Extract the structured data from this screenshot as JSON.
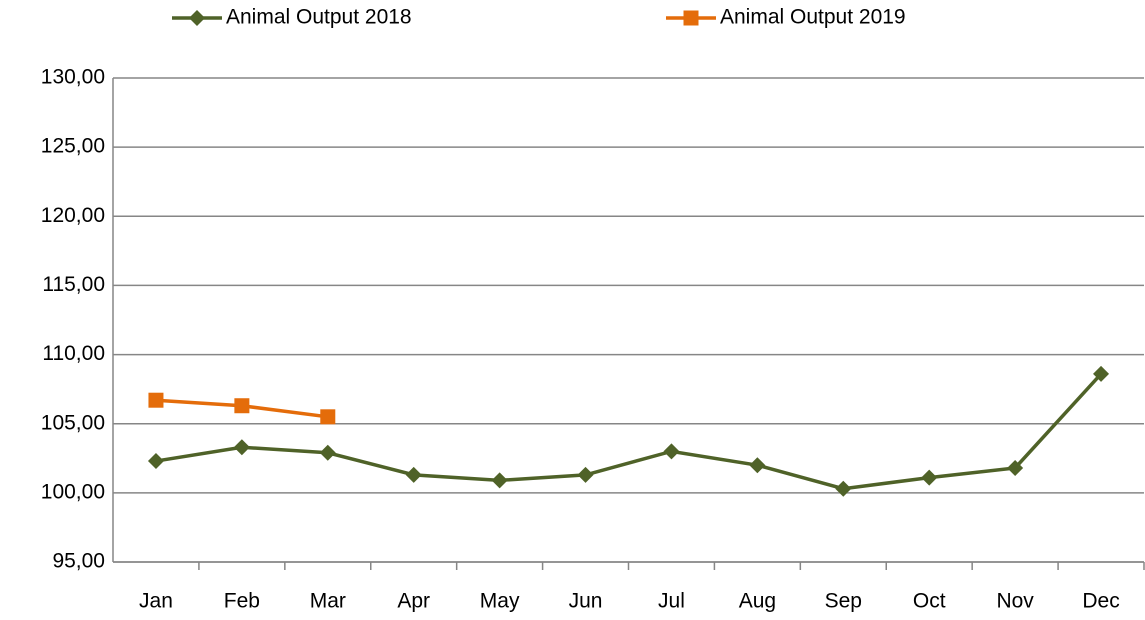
{
  "chart_data": {
    "type": "line",
    "categories": [
      "Jan",
      "Feb",
      "Mar",
      "Apr",
      "May",
      "Jun",
      "Jul",
      "Aug",
      "Sep",
      "Oct",
      "Nov",
      "Dec"
    ],
    "series": [
      {
        "name": "Animal Output 2018",
        "color": "#4f6228",
        "marker": "diamond",
        "values": [
          102.3,
          103.3,
          102.9,
          101.3,
          100.9,
          101.3,
          103.0,
          102.0,
          100.3,
          101.1,
          101.8,
          108.6
        ]
      },
      {
        "name": "Animal Output 2019",
        "color": "#e46c0a",
        "marker": "square",
        "values": [
          106.7,
          106.3,
          105.5,
          null,
          null,
          null,
          null,
          null,
          null,
          null,
          null,
          null
        ]
      }
    ],
    "ylim": [
      95,
      130
    ],
    "yticks": [
      {
        "value": 95,
        "label": "95,00"
      },
      {
        "value": 100,
        "label": "100,00"
      },
      {
        "value": 105,
        "label": "105,00"
      },
      {
        "value": 110,
        "label": "110,00"
      },
      {
        "value": 115,
        "label": "115,00"
      },
      {
        "value": 120,
        "label": "120,00"
      },
      {
        "value": 125,
        "label": "125,00"
      },
      {
        "value": 130,
        "label": "130,00"
      }
    ],
    "grid": true,
    "legend": "top"
  }
}
